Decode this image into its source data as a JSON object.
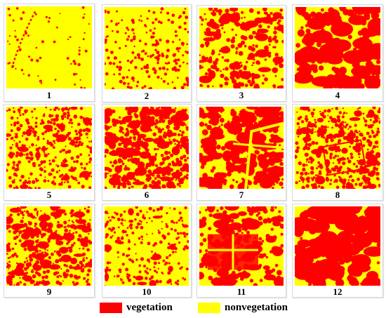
{
  "colors": {
    "vegetation": "#ff0000",
    "nonvegetation": "#ffff00"
  },
  "panels": [
    {
      "label": "1",
      "vegetation_fraction": 0.04
    },
    {
      "label": "2",
      "vegetation_fraction": 0.18
    },
    {
      "label": "3",
      "vegetation_fraction": 0.38
    },
    {
      "label": "4",
      "vegetation_fraction": 0.62
    },
    {
      "label": "5",
      "vegetation_fraction": 0.32
    },
    {
      "label": "6",
      "vegetation_fraction": 0.6
    },
    {
      "label": "7",
      "vegetation_fraction": 0.58
    },
    {
      "label": "8",
      "vegetation_fraction": 0.42
    },
    {
      "label": "9",
      "vegetation_fraction": 0.45
    },
    {
      "label": "10",
      "vegetation_fraction": 0.2
    },
    {
      "label": "11",
      "vegetation_fraction": 0.4
    },
    {
      "label": "12",
      "vegetation_fraction": 0.65
    }
  ],
  "legend": {
    "vegetation_label": "vegetation",
    "nonvegetation_label": "nonvegetation"
  }
}
